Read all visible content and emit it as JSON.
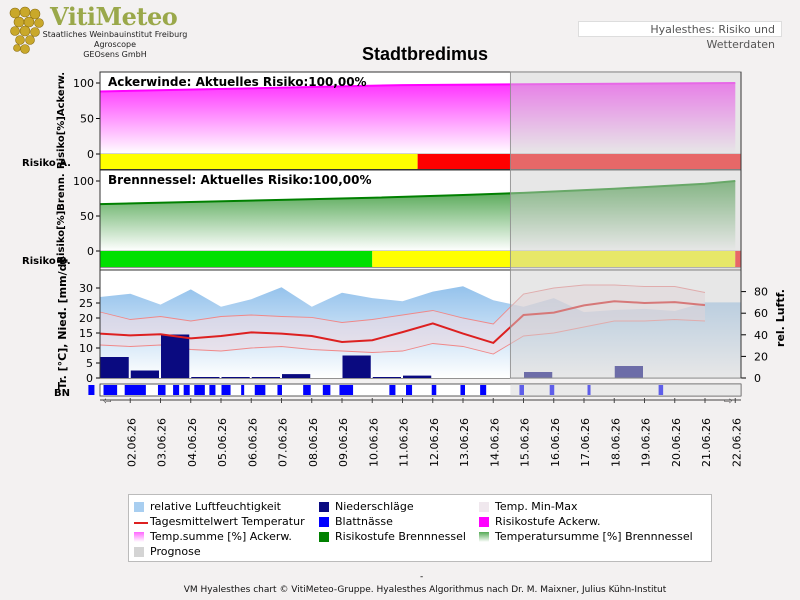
{
  "logo": {
    "brand": "VitiMeteo",
    "line1": "Staatliches Weinbauinstitut Freiburg",
    "line2": "Agroscope",
    "line3": "GEOsens GmbH"
  },
  "header_box": "Hyalesthes: Risiko und Wetterdaten",
  "title": "Stadtbredimus",
  "footer": "VM Hyalesthes chart © VitiMeteo-Gruppe. Hyalesthes Algorithmus nach Dr. M. Maixner, Julius Kühn-Institut",
  "footer_dash": "-",
  "colors": {
    "humidity": "#a8cef0",
    "precip": "#0a0a80",
    "leafwet": "#0000ff",
    "temp_line": "#dd2020",
    "ackerwinde": "#ff00ff",
    "brennnessel": "#008000",
    "risk_yellow": "#ffff00",
    "risk_red": "#ff0000",
    "risk_green": "#00e000",
    "prognose": "#d0d0d0"
  },
  "chart_data": [
    {
      "type": "area",
      "panel": "ackerwinde",
      "annotation": "Ackerwinde:  Aktuelles  Risiko:100,00%",
      "ylabel": "Risiko[%]Ackerw.",
      "row_label": "Risiko A.",
      "ylim": [
        0,
        100
      ],
      "yticks": [
        0,
        50,
        100
      ],
      "series": [
        {
          "name": "Temp.summe [%] Ackerw.",
          "x_index": [
            0,
            10,
            21
          ],
          "values": [
            88,
            97,
            100
          ]
        }
      ],
      "risk_bar": [
        {
          "from": 0,
          "to": 10.5,
          "level": "yellow"
        },
        {
          "from": 10.5,
          "to": 21.5,
          "level": "red"
        }
      ]
    },
    {
      "type": "area",
      "panel": "brennnessel",
      "annotation": "Brennnessel:  Aktuelles  Risiko:100,00%",
      "ylabel": "Risiko[%]Brenn.",
      "row_label": "Risiko B.",
      "ylim": [
        0,
        100
      ],
      "yticks": [
        0,
        50,
        100
      ],
      "series": [
        {
          "name": "Temperatursumme [%] Brennnessel",
          "x_index": [
            0,
            3,
            6,
            9,
            12,
            14,
            17,
            20,
            21
          ],
          "values": [
            67,
            70,
            73,
            76,
            80,
            83,
            89,
            96,
            100
          ]
        }
      ],
      "risk_bar": [
        {
          "from": 0,
          "to": 9,
          "level": "green"
        },
        {
          "from": 9,
          "to": 21,
          "level": "yellow"
        },
        {
          "from": 21,
          "to": 21.5,
          "level": "red"
        }
      ]
    },
    {
      "type": "line",
      "panel": "weather",
      "ylabel": "Tr. [°C], Nied. [mm/d]",
      "y2label": "rel. Luftf.",
      "row_label": "BN",
      "ylim": [
        0,
        35
      ],
      "yticks": [
        0,
        5,
        10,
        15,
        20,
        25,
        30
      ],
      "y2lim": [
        0,
        100
      ],
      "y2ticks": [
        0,
        20,
        40,
        60,
        80
      ],
      "categories": [
        "02.06.26",
        "03.06.26",
        "04.06.26",
        "05.06.26",
        "06.06.26",
        "07.06.26",
        "08.06.26",
        "09.06.26",
        "10.06.26",
        "11.06.26",
        "12.06.26",
        "13.06.26",
        "14.06.26",
        "15.06.26",
        "16.06.26",
        "17.06.26",
        "18.06.26",
        "19.06.26",
        "20.06.26",
        "21.06.26",
        "22.06.26"
      ],
      "prognose_from": "16.06.26",
      "series": [
        {
          "name": "Tagesmittelwert Temperatur",
          "values": [
            14.8,
            14.2,
            14.6,
            13.2,
            14.0,
            15.2,
            14.8,
            14.0,
            12.0,
            12.6,
            15.3,
            18.2,
            14.8,
            11.7,
            21.0,
            21.8,
            24.2,
            25.6,
            25.0,
            25.3,
            24.3
          ]
        },
        {
          "name": "Temp. Min-Max max",
          "values": [
            22.0,
            19.5,
            20.5,
            19.0,
            20.5,
            21.0,
            20.5,
            20.2,
            18.5,
            19.5,
            21.0,
            22.5,
            20.0,
            18.0,
            28.0,
            30.0,
            31.0,
            31.0,
            30.5,
            30.5,
            28.5
          ]
        },
        {
          "name": "Temp. Min-Max min",
          "values": [
            11.0,
            10.5,
            11.0,
            9.5,
            9.0,
            10.0,
            10.5,
            9.5,
            9.0,
            8.5,
            9.0,
            11.5,
            10.5,
            8.0,
            14.0,
            15.0,
            17.0,
            19.0,
            19.0,
            19.5,
            19.0
          ]
        },
        {
          "name": "relative Luftfeuchtigkeit",
          "values": [
            75,
            78,
            68,
            82,
            66,
            73,
            84,
            66,
            79,
            74,
            71,
            80,
            85,
            72,
            66,
            74,
            61,
            63,
            64,
            62,
            70
          ]
        },
        {
          "name": "Niederschläge",
          "values": [
            7.0,
            2.5,
            14.5,
            0.3,
            0.2,
            0.1,
            1.3,
            0,
            7.5,
            0.3,
            0.8,
            0,
            0,
            0,
            2.0,
            0,
            0,
            4.0,
            0,
            0,
            0
          ]
        },
        {
          "name": "Blattnässe",
          "segments": [
            [
              0.05,
              0.25
            ],
            [
              0.55,
              1.0
            ],
            [
              1.25,
              1.95
            ],
            [
              2.35,
              2.6
            ],
            [
              2.85,
              3.05
            ],
            [
              3.2,
              3.4
            ],
            [
              3.55,
              3.9
            ],
            [
              4.05,
              4.25
            ],
            [
              4.45,
              4.75
            ],
            [
              5.1,
              5.2
            ],
            [
              5.55,
              5.9
            ],
            [
              6.3,
              6.45
            ],
            [
              7.15,
              7.4
            ],
            [
              7.8,
              8.05
            ],
            [
              8.35,
              8.8
            ],
            [
              10.0,
              10.2
            ],
            [
              10.55,
              10.75
            ],
            [
              11.4,
              11.55
            ],
            [
              12.35,
              12.5
            ],
            [
              13.0,
              13.2
            ],
            [
              14.3,
              14.45
            ],
            [
              15.3,
              15.45
            ],
            [
              16.55,
              16.65
            ],
            [
              18.9,
              19.05
            ]
          ]
        }
      ]
    }
  ],
  "legend": [
    {
      "label": "relative Luftfeuchtigkeit",
      "swatch": "#a8cef0"
    },
    {
      "label": "Niederschläge",
      "swatch": "#0a0a80"
    },
    {
      "label": "Temp. Min-Max",
      "swatch": "#f0e8ee"
    },
    {
      "label": "Tagesmittelwert Temperatur",
      "swatch": "line:#dd2020"
    },
    {
      "label": "Blattnässe",
      "swatch": "#0000ff"
    },
    {
      "label": "Risikostufe Ackerw.",
      "swatch": "#ff00ff"
    },
    {
      "label": "Temp.summe [%] Ackerw.",
      "swatch": "grad:#ff66ff"
    },
    {
      "label": "Risikostufe Brennnessel",
      "swatch": "#008000"
    },
    {
      "label": "Temperatursumme [%] Brennnessel",
      "swatch": "grad:#55aa55"
    },
    {
      "label": "Prognose",
      "swatch": "#d4d4d4"
    }
  ]
}
